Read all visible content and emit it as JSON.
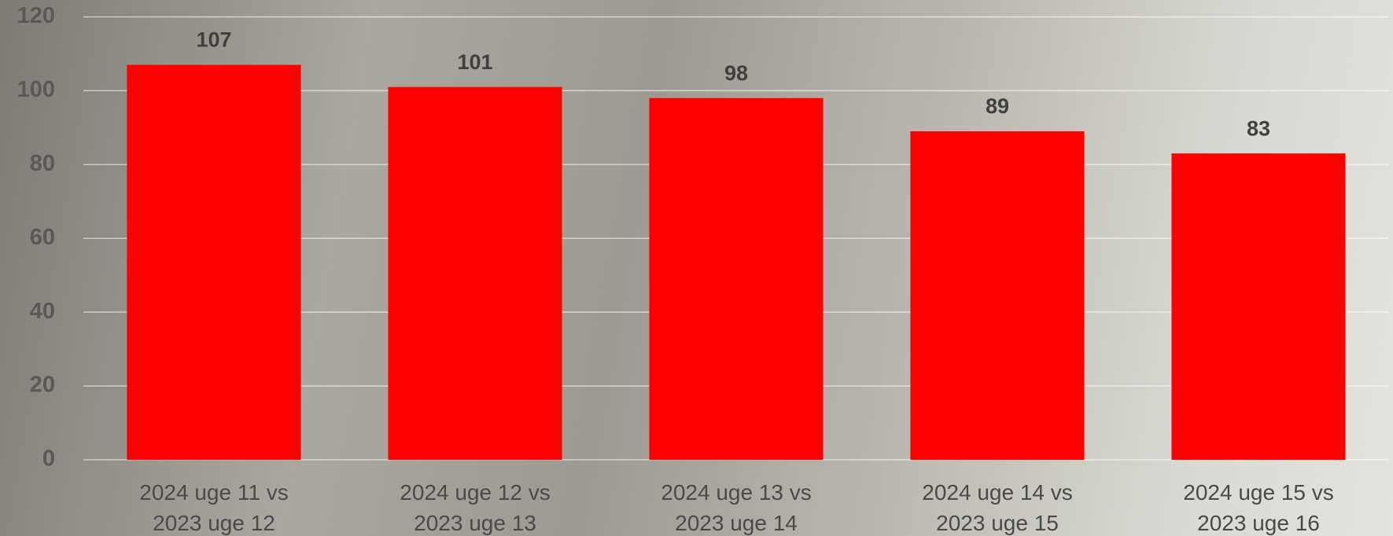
{
  "chart_data": {
    "type": "bar",
    "categories": [
      "2024 uge 11 vs 2023 uge 12",
      "2024 uge 12 vs 2023 uge 13",
      "2024 uge 13 vs 2023 uge 14",
      "2024 uge 14 vs 2023 uge 15",
      "2024 uge 15 vs 2023 uge 16"
    ],
    "values": [
      107,
      101,
      98,
      89,
      83
    ],
    "color": "#ff0000",
    "ylim": [
      0,
      120
    ],
    "yticks": [
      0,
      20,
      40,
      60,
      80,
      100,
      120
    ],
    "grid": true
  }
}
